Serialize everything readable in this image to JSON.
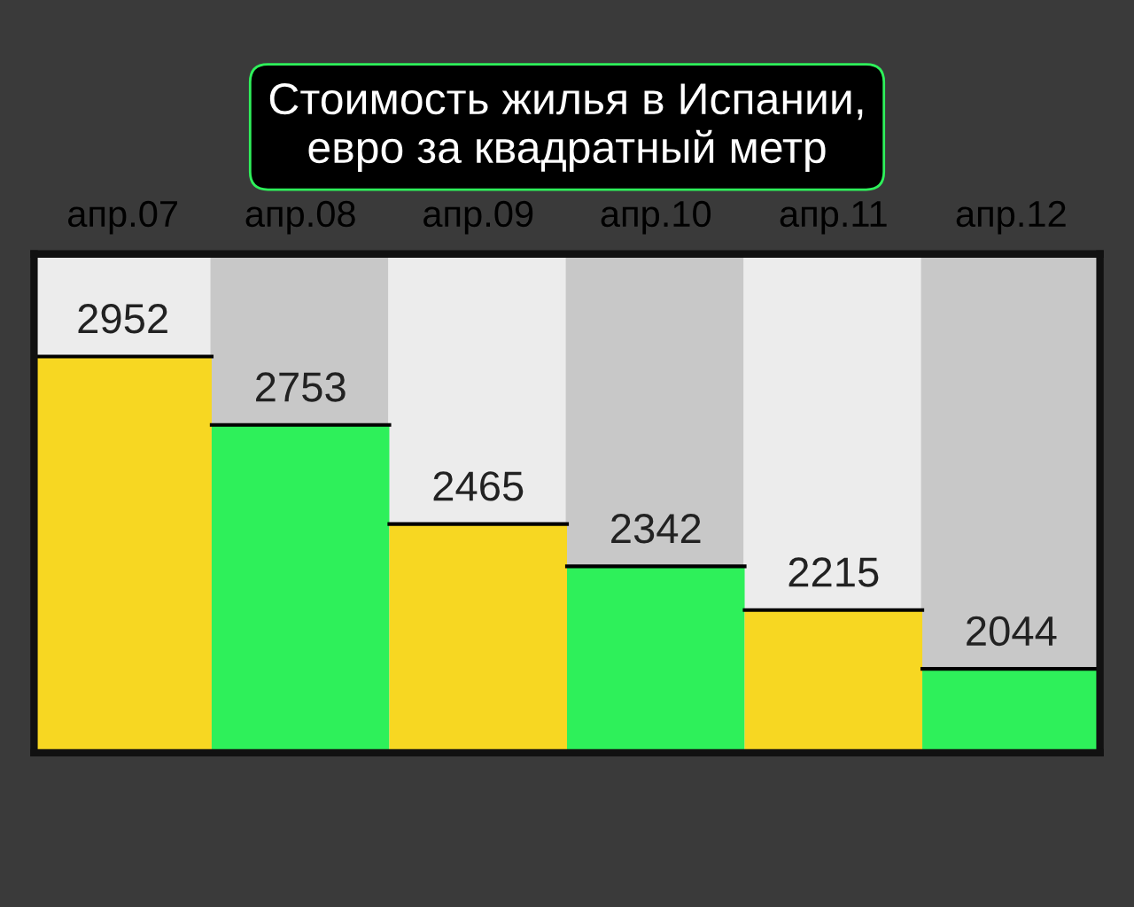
{
  "chart_data": {
    "type": "bar",
    "title": "Стоимость жилья в Испании,\nевро за квадратный метр",
    "categories": [
      "апр.07",
      "апр.08",
      "апр.09",
      "апр.10",
      "апр.11",
      "апр.12"
    ],
    "values": [
      2952,
      2753,
      2465,
      2342,
      2215,
      2044
    ],
    "colors": [
      "#f7d722",
      "#2ef05a",
      "#f7d722",
      "#2ef05a",
      "#f7d722",
      "#2ef05a"
    ],
    "ylim": [
      1800,
      3250
    ],
    "data_labels": true,
    "tick_labels": "x",
    "grid": false,
    "legend": false
  }
}
